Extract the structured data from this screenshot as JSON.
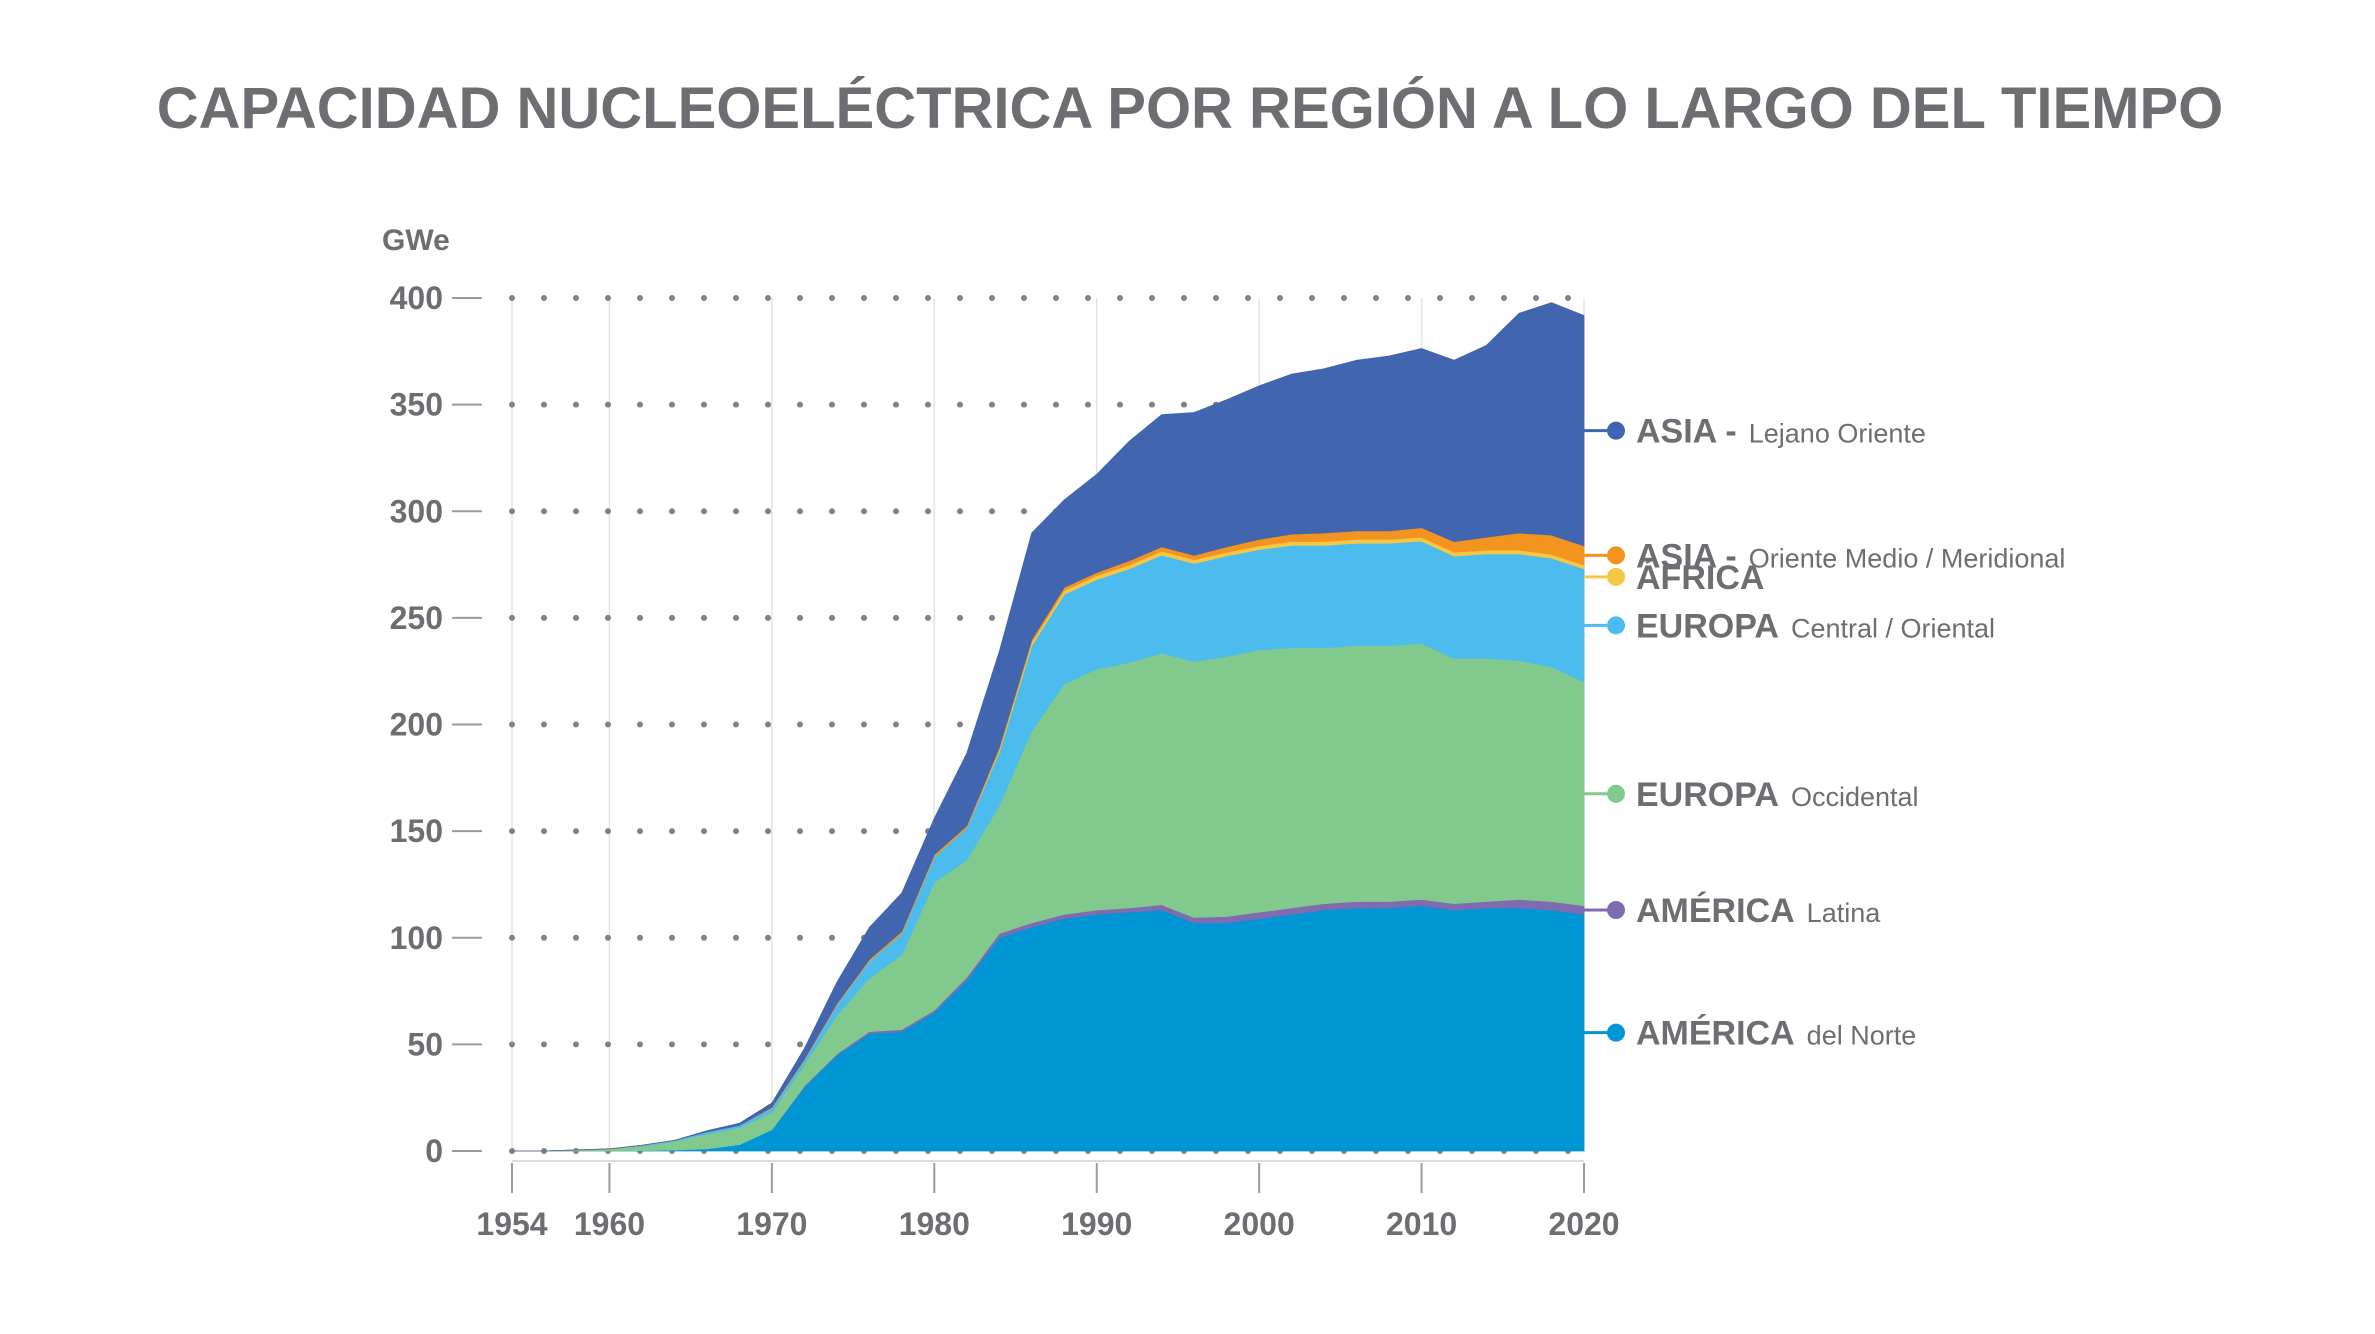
{
  "title": "CAPACIDAD NUCLEOELÉCTRICA POR REGIÓN A LO LARGO DEL TIEMPO",
  "chart_data": {
    "type": "area",
    "stacked": true,
    "title": "CAPACIDAD NUCLEOELÉCTRICA POR REGIÓN A LO LARGO DEL TIEMPO",
    "ylabel": "GWe",
    "xlabel": "",
    "ylim": [
      0,
      400
    ],
    "xlim": [
      1954,
      2020
    ],
    "y_ticks": [
      "0",
      "50",
      "100",
      "150",
      "200",
      "250",
      "300",
      "350",
      "400"
    ],
    "x_ticks": [
      "1954",
      "1960",
      "1970",
      "1980",
      "1990",
      "2000",
      "2010",
      "2020"
    ],
    "grid": "dotted horizontal, light vertical at decades",
    "legend_position": "right",
    "x": [
      1954,
      1956,
      1958,
      1960,
      1962,
      1964,
      1966,
      1968,
      1970,
      1972,
      1974,
      1976,
      1978,
      1980,
      1982,
      1984,
      1986,
      1988,
      1990,
      1992,
      1994,
      1996,
      1998,
      2000,
      2002,
      2004,
      2006,
      2008,
      2010,
      2012,
      2014,
      2016,
      2018,
      2020
    ],
    "series": [
      {
        "name": "AMÉRICA del Norte",
        "main": "AMÉRICA",
        "sub": "del Norte",
        "color": "#0096d6",
        "values": [
          0,
          0,
          0,
          0,
          0.2,
          0.5,
          1,
          3,
          10,
          30,
          45,
          55,
          56,
          65,
          80,
          100,
          105,
          109,
          111,
          112,
          113,
          107,
          107,
          109,
          111,
          113,
          114,
          114,
          115,
          113,
          114,
          114,
          113,
          111
        ]
      },
      {
        "name": "AMÉRICA Latina",
        "main": "AMÉRICA",
        "sub": "Latina",
        "color": "#7f6bb0",
        "values": [
          0,
          0,
          0,
          0,
          0,
          0,
          0,
          0,
          0,
          0.5,
          0.5,
          1,
          1,
          1,
          1.5,
          2,
          2,
          2,
          2,
          2,
          2.5,
          2.5,
          3,
          3,
          3,
          3,
          3,
          3,
          3,
          3,
          3,
          4,
          4,
          4
        ]
      },
      {
        "name": "EUROPA Occidental",
        "main": "EUROPA",
        "sub": "Occidental",
        "color": "#82c98e",
        "values": [
          0,
          0,
          0.5,
          1,
          2,
          4,
          7,
          8,
          8,
          10,
          18,
          25,
          35,
          60,
          55,
          60,
          90,
          108,
          113,
          115,
          118,
          120,
          122,
          123,
          122,
          120,
          120,
          120,
          120,
          115,
          114,
          112,
          110,
          105
        ]
      },
      {
        "name": "EUROPA Central / Oriental",
        "main": "EUROPA",
        "sub": "Central / Oriental",
        "color": "#4bbced",
        "values": [
          0,
          0,
          0,
          0,
          0.5,
          0.5,
          1,
          1,
          2,
          2,
          5,
          8,
          10,
          12,
          15,
          25,
          40,
          42,
          42,
          44,
          46,
          46,
          47,
          47,
          48,
          48,
          48,
          48,
          48,
          48,
          49,
          50,
          51,
          53
        ]
      },
      {
        "name": "ÁFRICA",
        "main": "ÁFRICA",
        "sub": "",
        "color": "#f6c744",
        "values": [
          0,
          0,
          0,
          0,
          0,
          0,
          0,
          0,
          0,
          0,
          0,
          0,
          0,
          0,
          0,
          1,
          1.5,
          1.8,
          1.8,
          1.8,
          1.8,
          1.8,
          1.8,
          1.8,
          1.8,
          1.8,
          1.8,
          1.8,
          1.8,
          1.8,
          1.8,
          1.8,
          1.8,
          1.8
        ]
      },
      {
        "name": "ASIA - Oriente Medio / Meridional",
        "main": "ASIA -",
        "sub": "Oriente Medio / Meridional",
        "color": "#f39420",
        "values": [
          0,
          0,
          0,
          0,
          0,
          0,
          0,
          0,
          0.5,
          0.5,
          0.6,
          0.8,
          1,
          1,
          1,
          1.2,
          1.3,
          1.5,
          1.5,
          2,
          2,
          2,
          2.5,
          3,
          3.5,
          4,
          4,
          4,
          4.5,
          5,
          6,
          8,
          9,
          9
        ]
      },
      {
        "name": "ASIA - Lejano Oriente",
        "main": "ASIA -",
        "sub": "Lejano Oriente",
        "color": "#4165ae",
        "values": [
          0,
          0,
          0,
          0,
          0,
          0,
          0.5,
          1,
          2,
          5,
          10,
          15,
          18,
          17,
          34,
          45,
          50,
          41,
          46,
          56,
          62,
          67,
          69,
          72,
          75,
          77,
          80,
          82,
          84,
          85,
          90,
          103,
          109,
          108
        ]
      }
    ]
  }
}
